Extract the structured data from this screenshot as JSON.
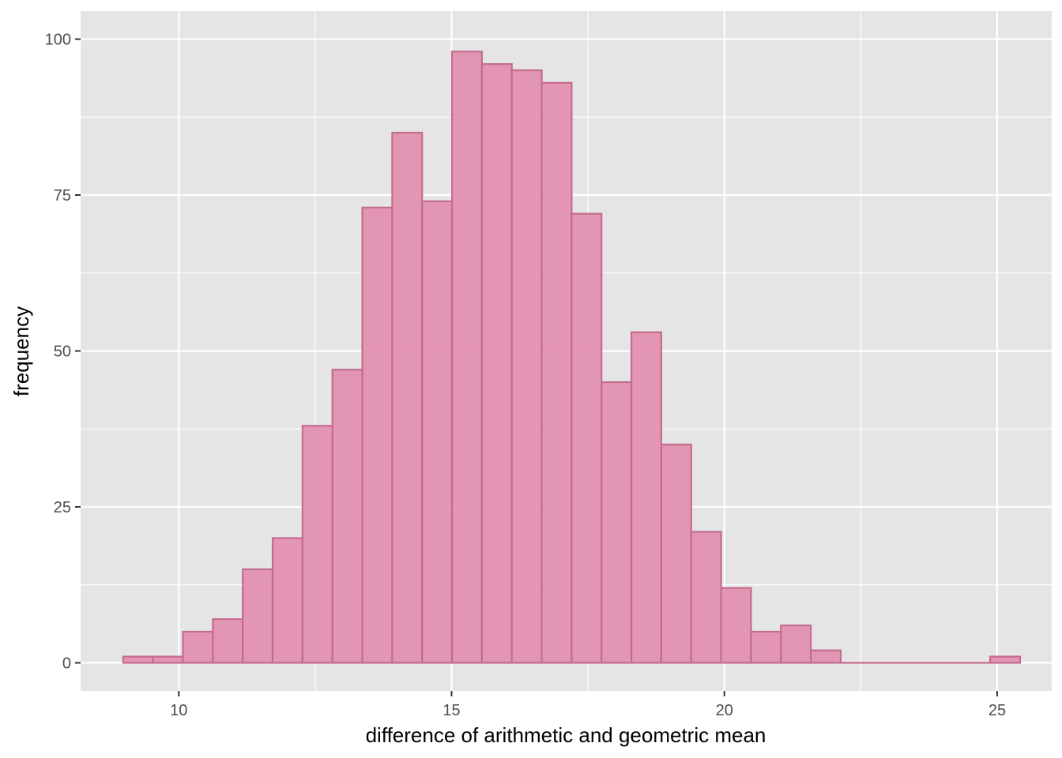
{
  "chart_data": {
    "type": "bar",
    "subtype": "histogram",
    "title": "",
    "xlabel": "difference of arithmetic and geometric mean",
    "ylabel": "frequency",
    "xlim": [
      8.2,
      26.0
    ],
    "ylim": [
      -4.5,
      104.5
    ],
    "x_ticks": [
      10,
      15,
      20,
      25
    ],
    "y_ticks": [
      0,
      25,
      50,
      75,
      100
    ],
    "x_tick_labels": [
      "10",
      "15",
      "20",
      "25"
    ],
    "y_tick_labels": [
      "0",
      "25",
      "50",
      "75",
      "100"
    ],
    "grid": true,
    "legend": "none",
    "bin_start": 8.98,
    "bin_width": 0.548,
    "values": [
      1,
      1,
      5,
      7,
      15,
      20,
      38,
      47,
      73,
      85,
      74,
      98,
      96,
      95,
      93,
      72,
      45,
      53,
      35,
      21,
      12,
      5,
      6,
      2,
      0,
      0,
      0,
      0,
      0,
      1
    ],
    "colors": {
      "panel_background": "#e5e5e5",
      "grid_line": "#ffffff",
      "bar_fill": "#e391b0",
      "bar_stroke": "#c46c8e",
      "tick_text": "#4d4d4d",
      "axis_title": "#000000"
    }
  }
}
